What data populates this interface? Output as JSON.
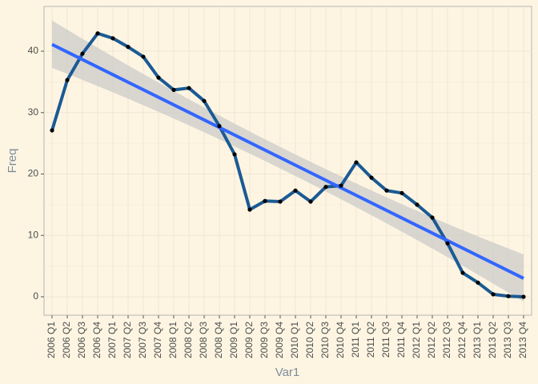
{
  "chart_data": {
    "type": "line",
    "x_label": "Var1",
    "y_label": "Freq",
    "categories": [
      "2006 Q1",
      "2006 Q2",
      "2006 Q3",
      "2006 Q4",
      "2007 Q1",
      "2007 Q2",
      "2007 Q3",
      "2007 Q4",
      "2008 Q1",
      "2008 Q2",
      "2008 Q3",
      "2008 Q4",
      "2009 Q1",
      "2009 Q2",
      "2009 Q3",
      "2009 Q4",
      "2010 Q1",
      "2010 Q2",
      "2010 Q3",
      "2010 Q4",
      "2011 Q1",
      "2011 Q2",
      "2011 Q3",
      "2011 Q4",
      "2012 Q1",
      "2012 Q2",
      "2012 Q3",
      "2012 Q4",
      "2013 Q1",
      "2013 Q2",
      "2013 Q3",
      "2013 Q4"
    ],
    "series": [
      {
        "color": "#1b5a94",
        "values": [
          27.1,
          35.3,
          39.6,
          42.9,
          42.1,
          40.7,
          39.1,
          35.7,
          33.7,
          34.0,
          31.9,
          27.8,
          23.2,
          14.2,
          15.6,
          15.5,
          17.3,
          15.5,
          17.9,
          18.1,
          21.9,
          19.4,
          17.3,
          16.9,
          15.0,
          12.9,
          8.7,
          3.9,
          2.3,
          0.4,
          0.1,
          0.0
        ]
      }
    ],
    "trend": {
      "color": "#3366ff",
      "start": 41.1,
      "end": 3.0,
      "band_color": "#c9c9c9",
      "upper": [
        45.0,
        23.8,
        6.9
      ],
      "lower": [
        37.3,
        20.3,
        -0.8
      ]
    },
    "ylim": [
      -3.0,
      47.3
    ],
    "yticks": [
      0,
      10,
      20,
      30,
      40
    ],
    "grid": true
  }
}
